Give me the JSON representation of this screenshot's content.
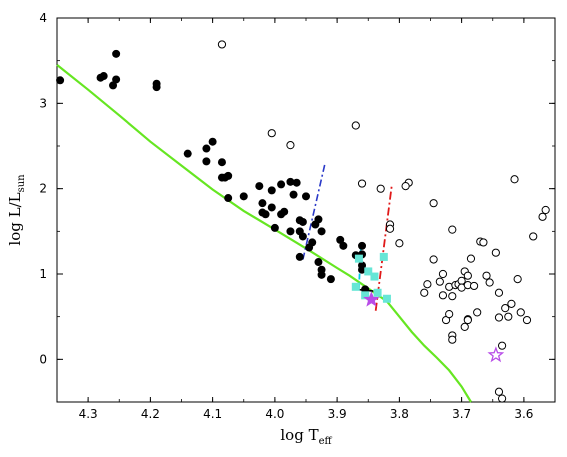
{
  "chart_data": {
    "type": "scatter",
    "title": "",
    "xlabel": {
      "main": "log T",
      "sub": "eff"
    },
    "ylabel": {
      "main": "log L/L",
      "sub": "sun"
    },
    "xlim": [
      4.35,
      3.55
    ],
    "ylim": [
      -0.5,
      4.0
    ],
    "x_inverted": true,
    "x_ticks": [
      "4.3",
      "4.2",
      "4.1",
      "4.0",
      "3.9",
      "3.8",
      "3.7",
      "3.6"
    ],
    "x_tick_values": [
      4.3,
      4.2,
      4.1,
      4.0,
      3.9,
      3.8,
      3.7,
      3.6
    ],
    "y_ticks": [
      "0",
      "1",
      "2",
      "3",
      "4"
    ],
    "y_tick_values": [
      0,
      1,
      2,
      3,
      4
    ],
    "grid": false,
    "colors": {
      "main_sequence": "#66e622",
      "filled": "#000000",
      "open": "#000000",
      "squares": "#66e6d6",
      "star": "#b84de8",
      "blue_line": "#2a39c8",
      "cyan_line": "#00c8e6",
      "red_line": "#e01818"
    },
    "series": [
      {
        "kind": "filled-circles",
        "points": [
          [
            4.345,
            3.27
          ],
          [
            4.28,
            3.3
          ],
          [
            4.275,
            3.32
          ],
          [
            4.26,
            3.21
          ],
          [
            4.255,
            3.58
          ],
          [
            4.255,
            3.28
          ],
          [
            4.19,
            3.23
          ],
          [
            4.19,
            3.19
          ],
          [
            4.14,
            2.41
          ],
          [
            4.11,
            2.47
          ],
          [
            4.11,
            2.32
          ],
          [
            4.1,
            2.55
          ],
          [
            4.085,
            2.31
          ],
          [
            4.085,
            2.13
          ],
          [
            4.08,
            2.13
          ],
          [
            4.075,
            2.15
          ],
          [
            4.075,
            1.89
          ],
          [
            4.05,
            1.91
          ],
          [
            4.025,
            2.03
          ],
          [
            4.02,
            1.83
          ],
          [
            4.02,
            1.72
          ],
          [
            4.015,
            1.7
          ],
          [
            4.005,
            1.78
          ],
          [
            4.005,
            1.98
          ],
          [
            4.0,
            1.54
          ],
          [
            3.99,
            2.05
          ],
          [
            3.99,
            1.7
          ],
          [
            3.985,
            1.73
          ],
          [
            3.975,
            2.08
          ],
          [
            3.975,
            1.5
          ],
          [
            3.97,
            1.93
          ],
          [
            3.965,
            2.07
          ],
          [
            3.96,
            1.63
          ],
          [
            3.96,
            1.5
          ],
          [
            3.955,
            1.61
          ],
          [
            3.955,
            1.44
          ],
          [
            3.95,
            1.91
          ],
          [
            3.945,
            1.31
          ],
          [
            3.94,
            1.37
          ],
          [
            3.935,
            1.58
          ],
          [
            3.93,
            1.64
          ],
          [
            3.925,
            1.5
          ],
          [
            3.93,
            1.14
          ],
          [
            3.925,
            1.05
          ],
          [
            3.925,
            0.99
          ],
          [
            3.91,
            0.94
          ],
          [
            3.895,
            1.4
          ],
          [
            3.89,
            1.33
          ],
          [
            3.87,
            1.22
          ],
          [
            3.86,
            1.33
          ],
          [
            3.86,
            1.23
          ],
          [
            3.86,
            1.1
          ],
          [
            3.86,
            1.05
          ],
          [
            3.855,
            0.82
          ],
          [
            3.96,
            1.2
          ]
        ]
      },
      {
        "kind": "open-circles",
        "points": [
          [
            4.085,
            3.69
          ],
          [
            4.005,
            2.65
          ],
          [
            3.975,
            2.51
          ],
          [
            3.87,
            2.74
          ],
          [
            3.86,
            2.06
          ],
          [
            3.815,
            1.58
          ],
          [
            3.815,
            1.53
          ],
          [
            3.8,
            1.36
          ],
          [
            3.785,
            2.07
          ],
          [
            3.745,
            1.83
          ],
          [
            3.745,
            1.17
          ],
          [
            3.73,
            1.0
          ],
          [
            3.735,
            0.91
          ],
          [
            3.73,
            0.75
          ],
          [
            3.72,
            0.85
          ],
          [
            3.715,
            1.52
          ],
          [
            3.715,
            0.74
          ],
          [
            3.71,
            0.87
          ],
          [
            3.705,
            0.88
          ],
          [
            3.7,
            0.92
          ],
          [
            3.7,
            0.84
          ],
          [
            3.695,
            1.03
          ],
          [
            3.69,
            0.98
          ],
          [
            3.69,
            0.87
          ],
          [
            3.685,
            1.18
          ],
          [
            3.68,
            0.86
          ],
          [
            3.675,
            0.55
          ],
          [
            3.67,
            1.38
          ],
          [
            3.665,
            1.37
          ],
          [
            3.66,
            0.98
          ],
          [
            3.655,
            0.9
          ],
          [
            3.645,
            1.25
          ],
          [
            3.64,
            0.78
          ],
          [
            3.64,
            0.49
          ],
          [
            3.635,
            0.16
          ],
          [
            3.63,
            0.6
          ],
          [
            3.625,
            0.5
          ],
          [
            3.62,
            0.65
          ],
          [
            3.615,
            2.11
          ],
          [
            3.61,
            0.94
          ],
          [
            3.605,
            0.55
          ],
          [
            3.595,
            0.46
          ],
          [
            3.585,
            1.44
          ],
          [
            3.57,
            1.67
          ],
          [
            3.565,
            1.75
          ],
          [
            3.69,
            0.47
          ],
          [
            3.69,
            0.46
          ],
          [
            3.695,
            0.38
          ],
          [
            3.715,
            0.28
          ],
          [
            3.715,
            0.23
          ],
          [
            3.725,
            0.46
          ],
          [
            3.72,
            0.53
          ],
          [
            3.76,
            0.78
          ],
          [
            3.755,
            0.88
          ],
          [
            3.64,
            -0.38
          ],
          [
            3.635,
            -0.46
          ],
          [
            3.83,
            2.0
          ],
          [
            3.79,
            2.03
          ]
        ]
      },
      {
        "kind": "squares",
        "points": [
          [
            3.865,
            1.18
          ],
          [
            3.85,
            1.03
          ],
          [
            3.84,
            0.97
          ],
          [
            3.825,
            1.2
          ],
          [
            3.835,
            0.78
          ],
          [
            3.82,
            0.71
          ],
          [
            3.87,
            0.85
          ],
          [
            3.855,
            0.75
          ]
        ]
      },
      {
        "kind": "filled-star",
        "points": [
          [
            3.845,
            0.7
          ]
        ]
      },
      {
        "kind": "open-star",
        "points": [
          [
            3.645,
            0.05
          ]
        ]
      }
    ],
    "lines": [
      {
        "kind": "main-sequence",
        "points": [
          [
            4.35,
            3.45
          ],
          [
            4.3,
            3.16
          ],
          [
            4.25,
            2.86
          ],
          [
            4.2,
            2.55
          ],
          [
            4.15,
            2.27
          ],
          [
            4.1,
            1.99
          ],
          [
            4.05,
            1.74
          ],
          [
            4.0,
            1.52
          ],
          [
            3.95,
            1.3
          ],
          [
            3.9,
            1.07
          ],
          [
            3.88,
            0.98
          ],
          [
            3.86,
            0.88
          ],
          [
            3.84,
            0.78
          ],
          [
            3.82,
            0.68
          ],
          [
            3.8,
            0.5
          ],
          [
            3.78,
            0.32
          ],
          [
            3.76,
            0.16
          ],
          [
            3.74,
            0.02
          ],
          [
            3.72,
            -0.13
          ],
          [
            3.7,
            -0.32
          ],
          [
            3.685,
            -0.5
          ]
        ]
      },
      {
        "kind": "blue-dash-dot",
        "points": [
          [
            3.955,
            1.17
          ],
          [
            3.92,
            2.28
          ]
        ]
      },
      {
        "kind": "cyan-dashed",
        "points": [
          [
            3.865,
            0.83
          ],
          [
            3.862,
            1.3
          ]
        ]
      },
      {
        "kind": "red-dash-dot",
        "points": [
          [
            3.838,
            0.57
          ],
          [
            3.812,
            2.05
          ]
        ]
      },
      {
        "kind": "black-segment",
        "points": [
          [
            3.868,
            0.82
          ],
          [
            3.842,
            0.8
          ]
        ]
      }
    ]
  }
}
